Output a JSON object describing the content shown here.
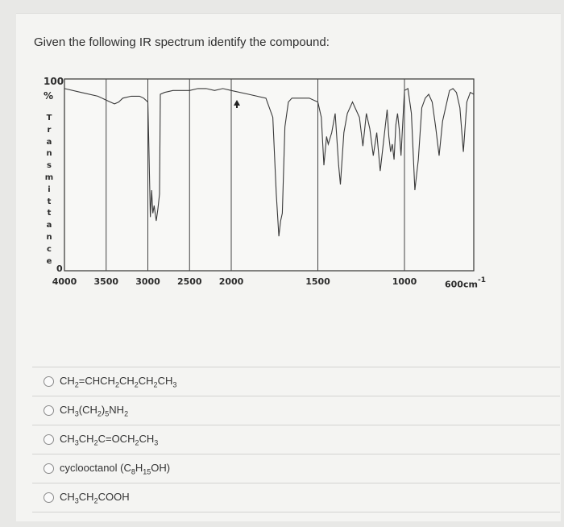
{
  "question": "Given the following IR spectrum identify the compound:",
  "chart_data": {
    "type": "line",
    "title": "",
    "ylabel_top": "100",
    "ylabel_unit": "%",
    "ylabel_vertical": "Transmittance",
    "y_zero_label": "0",
    "ylim": [
      0,
      100
    ],
    "x_tick_labels": [
      "4000",
      "3500",
      "3000",
      "2500",
      "2000",
      "1500",
      "1000",
      "600"
    ],
    "x_unit": "cm",
    "x_unit_exp": "-1",
    "series": [
      {
        "x": [
          4000,
          3800,
          3600,
          3500,
          3450,
          3400,
          3350,
          3300,
          3200,
          3100,
          3050,
          3000,
          2990,
          2970,
          2955,
          2940,
          2925,
          2900,
          2880,
          2860,
          2850,
          2800,
          2700,
          2600,
          2500,
          2400,
          2300,
          2200,
          2100,
          2000,
          1900,
          1800,
          1760,
          1740,
          1725,
          1715,
          1705,
          1690,
          1670,
          1650,
          1600,
          1550,
          1500,
          1480,
          1465,
          1450,
          1440,
          1420,
          1400,
          1380,
          1370,
          1350,
          1330,
          1300,
          1280,
          1260,
          1240,
          1220,
          1200,
          1180,
          1160,
          1140,
          1120,
          1100,
          1090,
          1080,
          1070,
          1060,
          1050,
          1040,
          1030,
          1020,
          1000,
          980,
          960,
          940,
          920,
          900,
          880,
          860,
          840,
          820,
          800,
          780,
          760,
          740,
          720,
          700,
          680,
          660,
          640,
          620,
          600
        ],
        "y": [
          95,
          93,
          91,
          89,
          88,
          87,
          88,
          90,
          91,
          91,
          90,
          88,
          70,
          28,
          42,
          30,
          34,
          26,
          32,
          40,
          92,
          93,
          94,
          94,
          94,
          95,
          95,
          94,
          95,
          94,
          92,
          90,
          80,
          40,
          18,
          26,
          30,
          75,
          88,
          90,
          90,
          90,
          88,
          80,
          55,
          70,
          66,
          72,
          82,
          55,
          45,
          72,
          82,
          88,
          84,
          80,
          65,
          82,
          74,
          60,
          72,
          52,
          68,
          84,
          70,
          62,
          66,
          58,
          76,
          82,
          74,
          60,
          94,
          95,
          82,
          42,
          58,
          85,
          90,
          92,
          88,
          75,
          60,
          78,
          86,
          94,
          95,
          93,
          85,
          62,
          88,
          93,
          92
        ]
      }
    ],
    "grid": true
  },
  "options": [
    {
      "id": "opt1",
      "parts": [
        [
          "CH",
          ""
        ],
        [
          "2",
          "sub"
        ],
        [
          "=CHCH",
          ""
        ],
        [
          "2",
          "sub"
        ],
        [
          "CH",
          ""
        ],
        [
          "2",
          "sub"
        ],
        [
          "CH",
          ""
        ],
        [
          "2",
          "sub"
        ],
        [
          "CH",
          ""
        ],
        [
          "3",
          "sub"
        ]
      ]
    },
    {
      "id": "opt2",
      "parts": [
        [
          "CH",
          ""
        ],
        [
          "3",
          "sub"
        ],
        [
          "(CH",
          ""
        ],
        [
          "2",
          "sub"
        ],
        [
          ")",
          ""
        ],
        [
          "5",
          "sub"
        ],
        [
          "NH",
          ""
        ],
        [
          "2",
          "sub"
        ]
      ]
    },
    {
      "id": "opt3",
      "parts": [
        [
          "CH",
          ""
        ],
        [
          "3",
          "sub"
        ],
        [
          "CH",
          ""
        ],
        [
          "2",
          "sub"
        ],
        [
          "C=OCH",
          ""
        ],
        [
          "2",
          "sub"
        ],
        [
          "CH",
          ""
        ],
        [
          "3",
          "sub"
        ]
      ]
    },
    {
      "id": "opt4",
      "parts": [
        [
          "cyclooctanol (C",
          ""
        ],
        [
          "8",
          "sub"
        ],
        [
          "H",
          ""
        ],
        [
          "15",
          "sub"
        ],
        [
          "OH)",
          ""
        ]
      ]
    },
    {
      "id": "opt5",
      "parts": [
        [
          "CH",
          ""
        ],
        [
          "3",
          "sub"
        ],
        [
          "CH",
          ""
        ],
        [
          "2",
          "sub"
        ],
        [
          "COOH",
          ""
        ]
      ]
    }
  ]
}
